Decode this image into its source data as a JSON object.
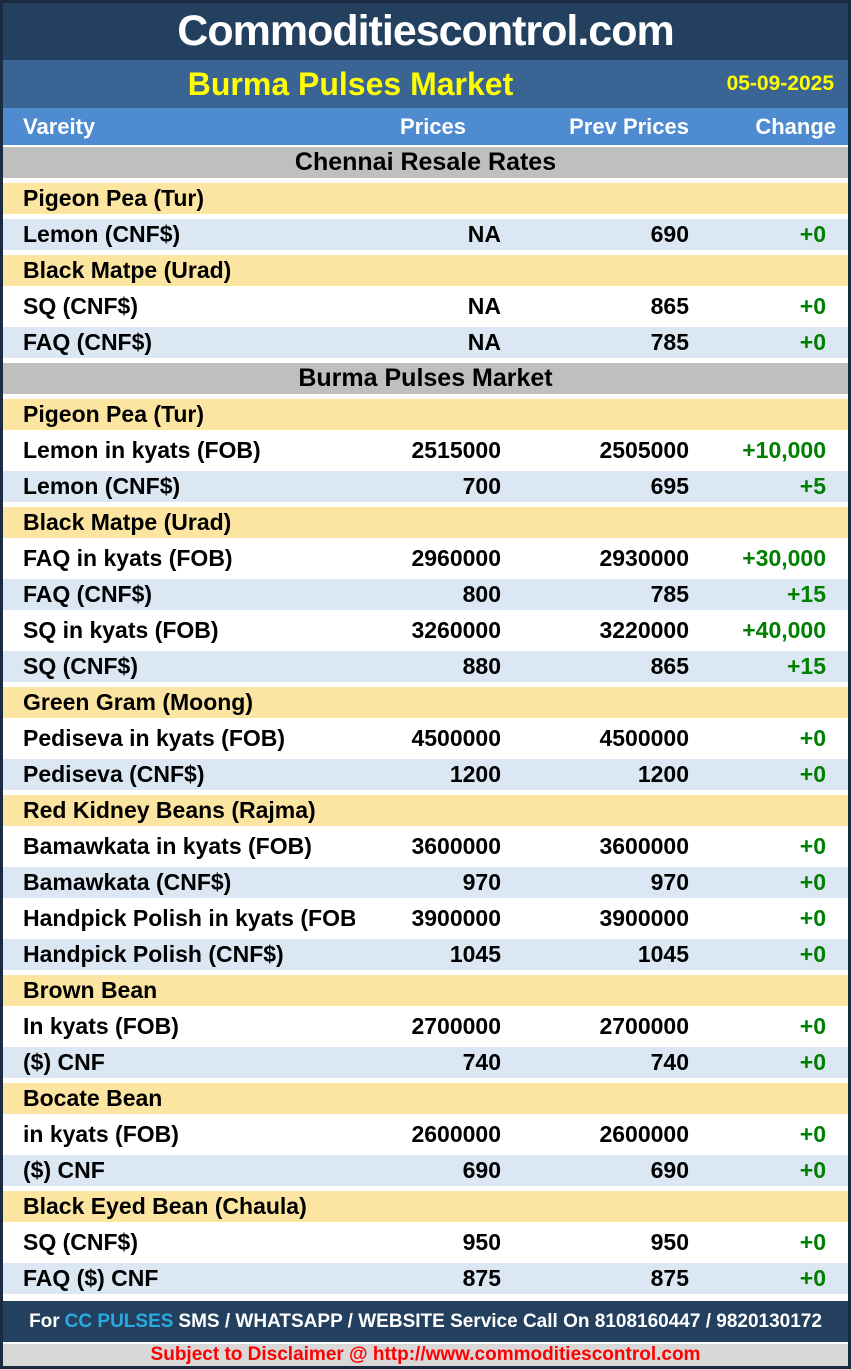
{
  "header": {
    "title": "Commoditiescontrol.com"
  },
  "subheader": {
    "title": "Burma Pulses Market",
    "date": "05-09-2025"
  },
  "columns": {
    "variety": "Vareity",
    "prices": "Prices",
    "prev": "Prev Prices",
    "change": "Change"
  },
  "rows": [
    {
      "type": "section",
      "label": "Chennai Resale Rates"
    },
    {
      "type": "category",
      "label": "Pigeon Pea (Tur)"
    },
    {
      "type": "data",
      "shade": "alt",
      "label": "Lemon (CNF$)",
      "prices": "NA",
      "prev": "690",
      "change": "+0"
    },
    {
      "type": "category",
      "label": "Black Matpe (Urad)"
    },
    {
      "type": "data",
      "shade": "plain",
      "label": "SQ (CNF$)",
      "prices": "NA",
      "prev": "865",
      "change": "+0"
    },
    {
      "type": "data",
      "shade": "alt",
      "label": "FAQ (CNF$)",
      "prices": "NA",
      "prev": "785",
      "change": "+0"
    },
    {
      "type": "section",
      "label": "Burma Pulses Market"
    },
    {
      "type": "category",
      "label": "Pigeon Pea (Tur)"
    },
    {
      "type": "data",
      "shade": "plain",
      "label": "Lemon in kyats (FOB)",
      "prices": "2515000",
      "prev": "2505000",
      "change": "+10,000"
    },
    {
      "type": "data",
      "shade": "alt",
      "label": "Lemon (CNF$)",
      "prices": "700",
      "prev": "695",
      "change": "+5"
    },
    {
      "type": "category",
      "label": "Black Matpe (Urad)"
    },
    {
      "type": "data",
      "shade": "plain",
      "label": "FAQ in kyats (FOB)",
      "prices": "2960000",
      "prev": "2930000",
      "change": "+30,000"
    },
    {
      "type": "data",
      "shade": "alt",
      "label": "FAQ (CNF$)",
      "prices": "800",
      "prev": "785",
      "change": "+15"
    },
    {
      "type": "data",
      "shade": "plain",
      "label": "SQ in kyats (FOB)",
      "prices": "3260000",
      "prev": "3220000",
      "change": "+40,000"
    },
    {
      "type": "data",
      "shade": "alt",
      "label": "SQ (CNF$)",
      "prices": "880",
      "prev": "865",
      "change": "+15"
    },
    {
      "type": "category",
      "label": "Green Gram (Moong)"
    },
    {
      "type": "data",
      "shade": "plain",
      "label": "Pediseva in kyats (FOB)",
      "prices": "4500000",
      "prev": "4500000",
      "change": "+0"
    },
    {
      "type": "data",
      "shade": "alt",
      "label": "Pediseva (CNF$)",
      "prices": "1200",
      "prev": "1200",
      "change": "+0"
    },
    {
      "type": "category",
      "label": "Red Kidney Beans (Rajma)"
    },
    {
      "type": "data",
      "shade": "plain",
      "label": "Bamawkata in kyats (FOB)",
      "prices": "3600000",
      "prev": "3600000",
      "change": "+0"
    },
    {
      "type": "data",
      "shade": "alt",
      "label": "Bamawkata (CNF$)",
      "prices": "970",
      "prev": "970",
      "change": "+0"
    },
    {
      "type": "data",
      "shade": "plain",
      "label": "Handpick Polish in kyats (FOB)",
      "prices": "3900000",
      "prev": "3900000",
      "change": "+0"
    },
    {
      "type": "data",
      "shade": "alt",
      "label": "Handpick Polish (CNF$)",
      "prices": "1045",
      "prev": "1045",
      "change": "+0"
    },
    {
      "type": "category",
      "label": "Brown Bean"
    },
    {
      "type": "data",
      "shade": "plain",
      "label": "In kyats (FOB)",
      "prices": "2700000",
      "prev": "2700000",
      "change": "+0"
    },
    {
      "type": "data",
      "shade": "alt",
      "label": "($) CNF",
      "prices": "740",
      "prev": "740",
      "change": "+0"
    },
    {
      "type": "category",
      "label": "Bocate Bean"
    },
    {
      "type": "data",
      "shade": "plain",
      "label": "in kyats (FOB)",
      "prices": "2600000",
      "prev": "2600000",
      "change": "+0"
    },
    {
      "type": "data",
      "shade": "alt",
      "label": "($) CNF",
      "prices": "690",
      "prev": "690",
      "change": "+0"
    },
    {
      "type": "category",
      "label": "Black Eyed Bean (Chaula)"
    },
    {
      "type": "data",
      "shade": "plain",
      "label": "SQ (CNF$)",
      "prices": "950",
      "prev": "950",
      "change": "+0"
    },
    {
      "type": "data",
      "shade": "alt",
      "label": "FAQ ($) CNF",
      "prices": "875",
      "prev": "875",
      "change": "+0"
    }
  ],
  "footer": {
    "service_prefix": "For",
    "service_brand": "CC PULSES",
    "service_rest": "SMS / WHATSAPP / WEBSITE Service Call On 8108160447 / 9820130172",
    "disclaimer": "Subject to Disclaimer @  http://www.commoditiescontrol.com"
  },
  "colors": {
    "masthead_bg": "#24405F",
    "titlebar_bg": "#3A6493",
    "column_header_bg": "#4E8BD0",
    "section_bg": "#BFBFBF",
    "category_bg": "#FCE5A0",
    "alt_row_bg": "#DBE8F4",
    "title_yellow": "#FFFF00",
    "change_green": "#008000",
    "brand_cyan": "#29ABE2",
    "disclaimer_red": "#FF0000"
  }
}
